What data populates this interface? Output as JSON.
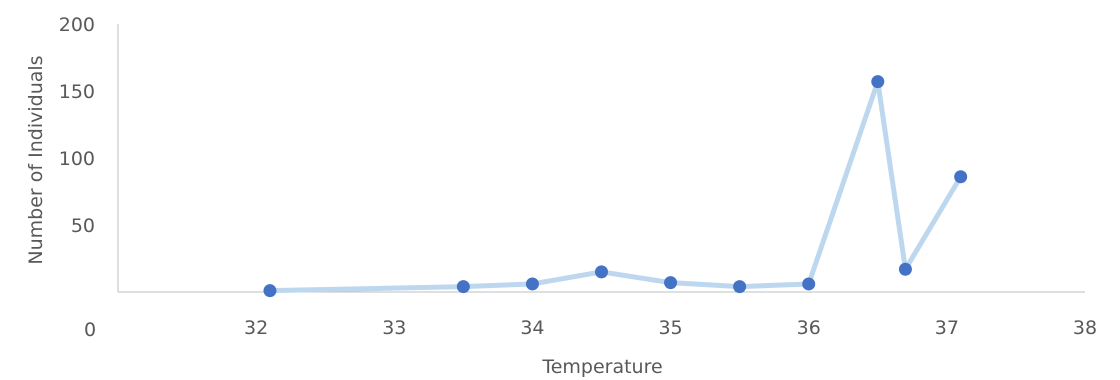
{
  "chart_data": {
    "type": "line",
    "title": "",
    "xlabel": "Temperature",
    "ylabel": "Number  of Individuals",
    "xlim": [
      31,
      38
    ],
    "ylim": [
      0,
      200
    ],
    "x_ticks": [
      "32",
      "33",
      "34",
      "35",
      "36",
      "37",
      "38"
    ],
    "y_ticks": [
      "0",
      "50",
      "100",
      "150",
      "200"
    ],
    "grid": false,
    "legend": "none",
    "series": [
      {
        "x": [
          32.1,
          33.5,
          34.0,
          34.5,
          35.0,
          35.5,
          36.0,
          36.5,
          36.7,
          37.1
        ],
        "y": [
          1,
          4,
          6,
          15,
          7,
          4,
          6,
          157,
          17,
          86
        ],
        "line_color": "#bdd7ee",
        "marker_color": "#4472c4"
      }
    ]
  }
}
